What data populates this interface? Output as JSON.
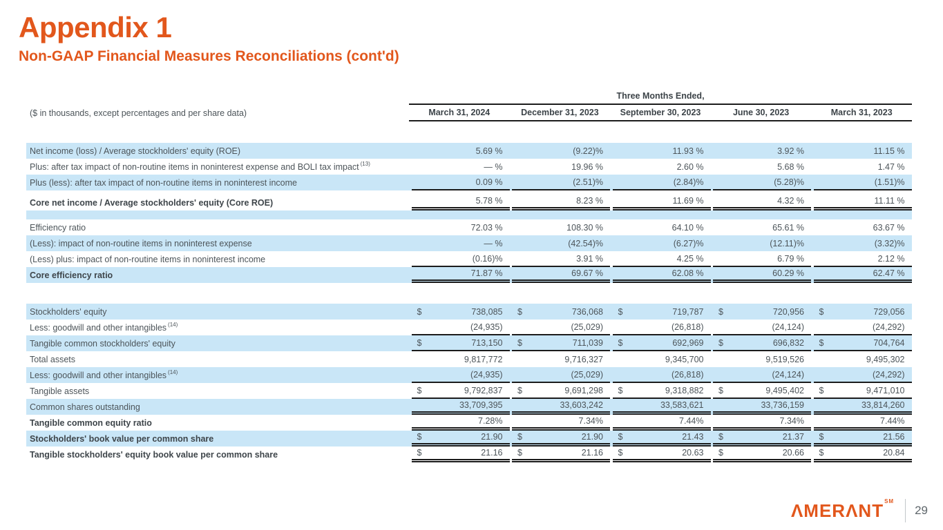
{
  "slide": {
    "title": "Appendix 1",
    "subtitle": "Non-GAAP Financial Measures Reconciliations (cont'd)",
    "page_number": "29",
    "logo_text": "ΛMERΛNT",
    "logo_mark": "SM"
  },
  "colors": {
    "accent_orange": "#E2571C",
    "row_blue": "#C9E6F7",
    "body_text": "#4C5459",
    "rule_line": "#1b1b1b"
  },
  "table": {
    "units_note": "($ in thousands, except percentages and per share data)",
    "header_group": "Three Months Ended,",
    "columns": [
      "March 31, 2024",
      "December 31, 2023",
      "September 30, 2023",
      "June 30, 2023",
      "March 31, 2023"
    ],
    "rows": [
      {
        "type": "data",
        "label": "Net income (loss) / Average stockholders' equity (ROE)",
        "sup": null,
        "bold": false,
        "shade": "blue",
        "dollar": false,
        "underline": "none",
        "values": [
          "5.69 %",
          "(9.22)%",
          "11.93 %",
          "3.92 %",
          "11.15 %"
        ]
      },
      {
        "type": "data",
        "label": "Plus: after tax impact of non-routine items in noninterest expense and BOLI tax impact",
        "sup": "(13)",
        "bold": false,
        "shade": "white",
        "dollar": false,
        "underline": "none",
        "values": [
          "— %",
          "19.96 %",
          "2.60 %",
          "5.68 %",
          "1.47 %"
        ]
      },
      {
        "type": "data",
        "label": "Plus (less): after tax impact of non-routine items in noninterest income",
        "sup": null,
        "bold": false,
        "shade": "blue",
        "dollar": false,
        "underline": "single",
        "values": [
          "0.09 %",
          "(2.51)%",
          "(2.84)%",
          "(5.28)%",
          "(1.51)%"
        ]
      },
      {
        "type": "data",
        "label": "Core net income / Average stockholders' equity (Core ROE)",
        "sup": null,
        "bold": true,
        "shade": "white",
        "dollar": false,
        "underline": "double",
        "gap_top": true,
        "values": [
          "5.78 %",
          "8.23 %",
          "11.69 %",
          "4.32 %",
          "11.11 %"
        ]
      },
      {
        "type": "blank",
        "shade": "blue"
      },
      {
        "type": "data",
        "label": "Efficiency ratio",
        "sup": null,
        "bold": false,
        "shade": "white",
        "dollar": false,
        "underline": "none",
        "values": [
          "72.03 %",
          "108.30 %",
          "64.10 %",
          "65.61 %",
          "63.67 %"
        ]
      },
      {
        "type": "data",
        "label": "(Less): impact of non-routine items in noninterest expense",
        "sup": null,
        "bold": false,
        "shade": "blue",
        "dollar": false,
        "underline": "none",
        "values": [
          "— %",
          "(42.54)%",
          "(6.27)%",
          "(12.11)%",
          "(3.32)%"
        ]
      },
      {
        "type": "data",
        "label": "(Less) plus: impact of non-routine items in noninterest income",
        "sup": null,
        "bold": false,
        "shade": "white",
        "dollar": false,
        "underline": "single",
        "values": [
          "(0.16)%",
          "3.91 %",
          "4.25 %",
          "6.79 %",
          "2.12 %"
        ]
      },
      {
        "type": "data",
        "label": "Core efficiency ratio",
        "sup": null,
        "bold": true,
        "shade": "blue",
        "dollar": false,
        "underline": "double",
        "values": [
          "71.87 %",
          "69.67 %",
          "62.08 %",
          "60.29 %",
          "62.47 %"
        ]
      },
      {
        "type": "gap"
      },
      {
        "type": "data",
        "label": "Stockholders' equity",
        "sup": null,
        "bold": false,
        "shade": "blue",
        "dollar": true,
        "underline": "none",
        "values": [
          "738,085",
          "736,068",
          "719,787",
          "720,956",
          "729,056"
        ]
      },
      {
        "type": "data",
        "label": "Less: goodwill and other intangibles",
        "sup": "(14)",
        "bold": false,
        "shade": "white",
        "dollar": false,
        "underline": "single",
        "values": [
          "(24,935)",
          "(25,029)",
          "(26,818)",
          "(24,124)",
          "(24,292)"
        ]
      },
      {
        "type": "data",
        "label": "Tangible common stockholders' equity",
        "sup": null,
        "bold": false,
        "shade": "blue",
        "dollar": true,
        "underline": "single",
        "values": [
          "713,150",
          "711,039",
          "692,969",
          "696,832",
          "704,764"
        ]
      },
      {
        "type": "data",
        "label": "Total assets",
        "sup": null,
        "bold": false,
        "shade": "white",
        "dollar": false,
        "underline": "none",
        "values": [
          "9,817,772",
          "9,716,327",
          "9,345,700",
          "9,519,526",
          "9,495,302"
        ]
      },
      {
        "type": "data",
        "label": "Less: goodwill and other intangibles",
        "sup": "(14)",
        "bold": false,
        "shade": "blue",
        "dollar": false,
        "underline": "single",
        "values": [
          "(24,935)",
          "(25,029)",
          "(26,818)",
          "(24,124)",
          "(24,292)"
        ]
      },
      {
        "type": "data",
        "label": "Tangible assets",
        "sup": null,
        "bold": false,
        "shade": "white",
        "dollar": true,
        "underline": "single",
        "values": [
          "9,792,837",
          "9,691,298",
          "9,318,882",
          "9,495,402",
          "9,471,010"
        ]
      },
      {
        "type": "data",
        "label": "Common shares outstanding",
        "sup": null,
        "bold": false,
        "shade": "blue",
        "dollar": false,
        "underline": "double",
        "values": [
          "33,709,395",
          "33,603,242",
          "33,583,621",
          "33,736,159",
          "33,814,260"
        ]
      },
      {
        "type": "data",
        "label": "Tangible common equity ratio",
        "sup": null,
        "bold": true,
        "shade": "white",
        "dollar": false,
        "underline": "double",
        "values": [
          "7.28%",
          "7.34%",
          "7.44%",
          "7.34%",
          "7.44%"
        ]
      },
      {
        "type": "data",
        "label": "Stockholders' book value per common share",
        "sup": null,
        "bold": true,
        "shade": "blue",
        "dollar": true,
        "underline": "double",
        "values": [
          "21.90",
          "21.90",
          "21.43",
          "21.37",
          "21.56"
        ]
      },
      {
        "type": "data",
        "label": "Tangible stockholders' equity book value per common share",
        "sup": null,
        "bold": true,
        "shade": "white",
        "dollar": true,
        "underline": "double",
        "values": [
          "21.16",
          "21.16",
          "20.63",
          "20.66",
          "20.84"
        ]
      }
    ]
  }
}
